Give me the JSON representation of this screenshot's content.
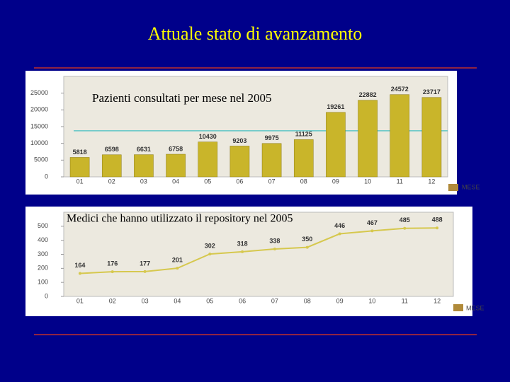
{
  "title": "Attuale stato di avanzamento",
  "chart_data": [
    {
      "type": "bar",
      "title": "Pazienti consultati per mese nel 2005",
      "categories": [
        "01",
        "02",
        "03",
        "04",
        "05",
        "06",
        "07",
        "08",
        "09",
        "10",
        "11",
        "12"
      ],
      "values": [
        5818,
        6598,
        6631,
        6758,
        10430,
        9203,
        9975,
        11125,
        19261,
        22882,
        24572,
        23717
      ],
      "color": "#c9b52a",
      "ylim": [
        0,
        30000
      ],
      "yticks": [
        0,
        5000,
        10000,
        15000,
        20000,
        25000
      ],
      "reference_line": 13750,
      "reference_color": "#5fc6c6",
      "x_label": "MESE"
    },
    {
      "type": "line",
      "title": "Medici che hanno utilizzato il repository nel 2005",
      "categories": [
        "01",
        "02",
        "03",
        "04",
        "05",
        "06",
        "07",
        "08",
        "09",
        "10",
        "11",
        "12"
      ],
      "values": [
        164,
        176,
        177,
        201,
        302,
        318,
        338,
        350,
        446,
        467,
        485,
        488
      ],
      "color": "#d6c84e",
      "ylim": [
        0,
        600
      ],
      "yticks": [
        0,
        100,
        200,
        300,
        400,
        500
      ],
      "x_label": "MESE"
    }
  ]
}
